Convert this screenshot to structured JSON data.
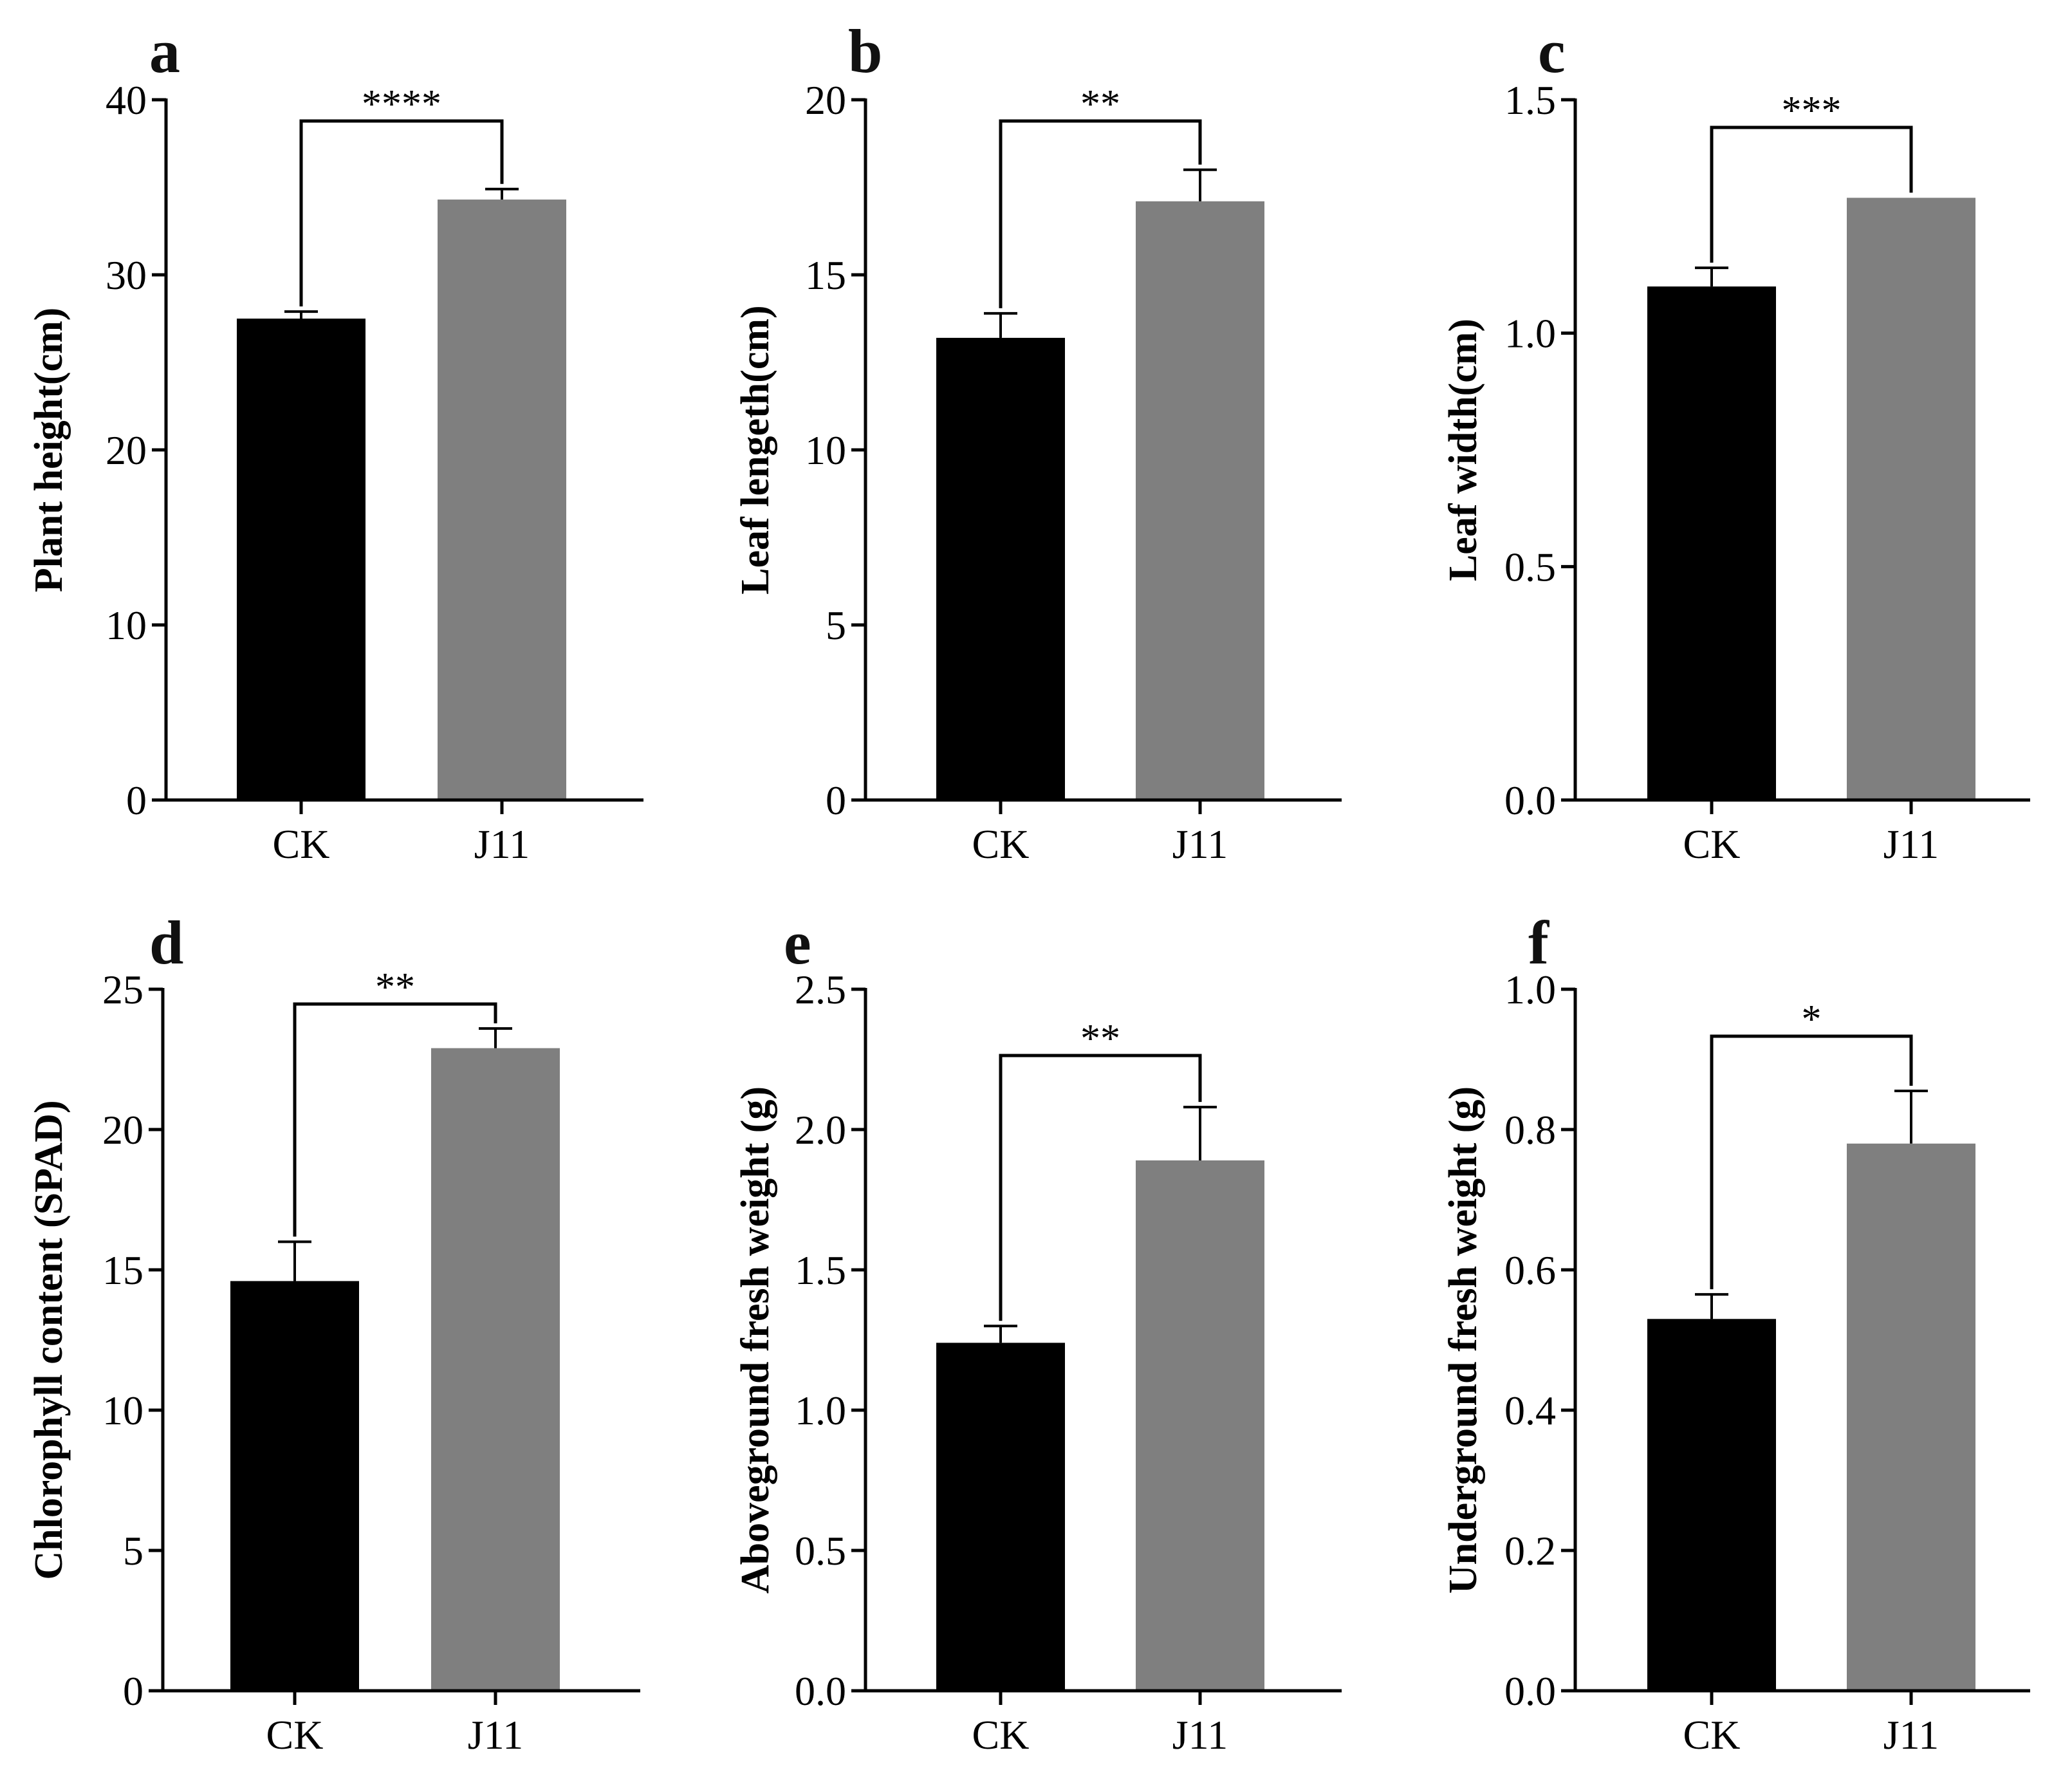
{
  "colors": {
    "ck": "#000000",
    "j11": "#7f7f7f",
    "axis": "#000000"
  },
  "chart_data": [
    {
      "type": "bar",
      "panel": "a",
      "ylabel": "Plant height(cm)",
      "categories": [
        "CK",
        "J11"
      ],
      "values": [
        27.5,
        34.3
      ],
      "errors": [
        0.4,
        0.6
      ],
      "ylim": [
        0,
        40
      ],
      "yticks": [
        0,
        10,
        20,
        30,
        40
      ],
      "ytick_labels": [
        "0",
        "10",
        "20",
        "30",
        "40"
      ],
      "significance": "****"
    },
    {
      "type": "bar",
      "panel": "b",
      "ylabel": "Leaf lengeth(cm)",
      "categories": [
        "CK",
        "J11"
      ],
      "values": [
        13.2,
        17.1
      ],
      "errors": [
        0.7,
        0.9
      ],
      "ylim": [
        0,
        20
      ],
      "yticks": [
        0,
        5,
        10,
        15,
        20
      ],
      "ytick_labels": [
        "0",
        "5",
        "10",
        "15",
        "20"
      ],
      "significance": "**"
    },
    {
      "type": "bar",
      "panel": "c",
      "ylabel": "Leaf width(cm)",
      "categories": [
        "CK",
        "J11"
      ],
      "values": [
        1.1,
        1.29
      ],
      "errors": [
        0.04,
        0.0
      ],
      "ylim": [
        0,
        1.5
      ],
      "yticks": [
        0,
        0.5,
        1.0,
        1.5
      ],
      "ytick_labels": [
        "0.0",
        "0.5",
        "1.0",
        "1.5"
      ],
      "significance": "***"
    },
    {
      "type": "bar",
      "panel": "d",
      "ylabel": "Chlorophyll content (SPAD)",
      "categories": [
        "CK",
        "J11"
      ],
      "values": [
        14.6,
        22.9
      ],
      "errors": [
        1.4,
        0.7
      ],
      "ylim": [
        0,
        25
      ],
      "yticks": [
        0,
        5,
        10,
        15,
        20,
        25
      ],
      "ytick_labels": [
        "0",
        "5",
        "10",
        "15",
        "20",
        "25"
      ],
      "significance": "**"
    },
    {
      "type": "bar",
      "panel": "e",
      "ylabel": "Aboveground fresh weight (g)",
      "categories": [
        "CK",
        "J11"
      ],
      "values": [
        1.24,
        1.89
      ],
      "errors": [
        0.06,
        0.19
      ],
      "ylim": [
        0,
        2.5
      ],
      "yticks": [
        0,
        0.5,
        1.0,
        1.5,
        2.0,
        2.5
      ],
      "ytick_labels": [
        "0.0",
        "0.5",
        "1.0",
        "1.5",
        "2.0",
        "2.5"
      ],
      "significance": "**"
    },
    {
      "type": "bar",
      "panel": "f",
      "ylabel": "Underground fresh weight (g)",
      "categories": [
        "CK",
        "J11"
      ],
      "values": [
        0.53,
        0.78
      ],
      "errors": [
        0.035,
        0.075
      ],
      "ylim": [
        0,
        1.0
      ],
      "yticks": [
        0,
        0.2,
        0.4,
        0.6,
        0.8,
        1.0
      ],
      "ytick_labels": [
        "0.0",
        "0.2",
        "0.4",
        "0.6",
        "0.8",
        "1.0"
      ],
      "significance": "*"
    }
  ]
}
